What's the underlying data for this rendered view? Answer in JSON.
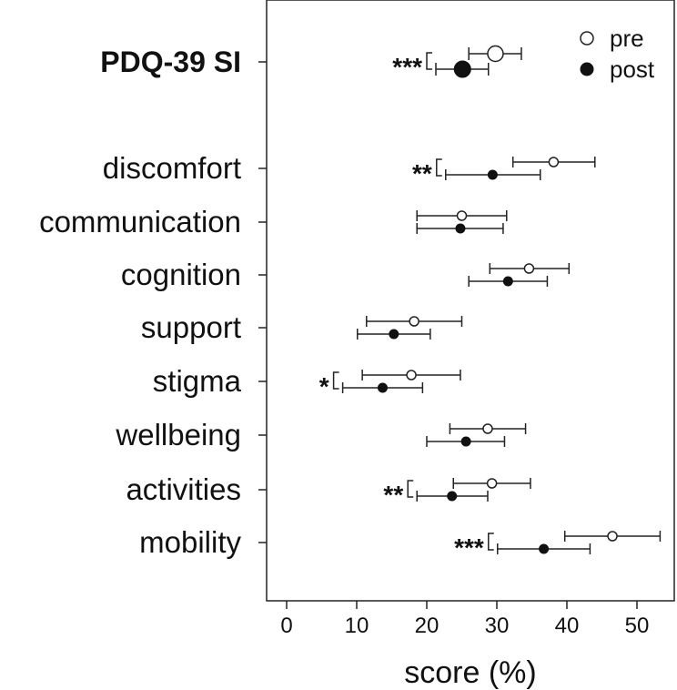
{
  "chart_data": {
    "type": "dot-errorbar",
    "xlabel": "score (%)",
    "xlim": [
      -2.5,
      55
    ],
    "xticks": [
      0,
      10,
      20,
      30,
      40,
      50
    ],
    "legend": {
      "position": "top-right",
      "entries": [
        "pre",
        "post"
      ]
    },
    "categories": [
      {
        "label": "PDQ-39 SI",
        "bold": true,
        "sig": "***",
        "pre": {
          "mean": 29.8,
          "low": 26.0,
          "high": 33.5
        },
        "post": {
          "mean": 25.1,
          "low": 21.3,
          "high": 28.8
        }
      },
      {
        "label": "discomfort",
        "sig": "**",
        "pre": {
          "mean": 38.1,
          "low": 32.3,
          "high": 44.0
        },
        "post": {
          "mean": 29.4,
          "low": 22.7,
          "high": 36.2
        }
      },
      {
        "label": "communication",
        "sig": "",
        "pre": {
          "mean": 25.0,
          "low": 18.6,
          "high": 31.4
        },
        "post": {
          "mean": 24.8,
          "low": 18.6,
          "high": 30.9
        }
      },
      {
        "label": "cognition",
        "sig": "",
        "pre": {
          "mean": 34.6,
          "low": 29.0,
          "high": 40.3
        },
        "post": {
          "mean": 31.6,
          "low": 26.0,
          "high": 37.2
        }
      },
      {
        "label": "support",
        "sig": "",
        "pre": {
          "mean": 18.2,
          "low": 11.4,
          "high": 25.0
        },
        "post": {
          "mean": 15.3,
          "low": 10.1,
          "high": 20.5
        }
      },
      {
        "label": "stigma",
        "sig": "*",
        "pre": {
          "mean": 17.8,
          "low": 10.8,
          "high": 24.8
        },
        "post": {
          "mean": 13.7,
          "low": 8.0,
          "high": 19.4
        }
      },
      {
        "label": "wellbeing",
        "sig": "",
        "pre": {
          "mean": 28.7,
          "low": 23.3,
          "high": 34.1
        },
        "post": {
          "mean": 25.6,
          "low": 20.0,
          "high": 31.1
        }
      },
      {
        "label": "activities",
        "sig": "**",
        "pre": {
          "mean": 29.3,
          "low": 23.8,
          "high": 34.8
        },
        "post": {
          "mean": 23.6,
          "low": 18.6,
          "high": 28.7
        }
      },
      {
        "label": "mobility",
        "sig": "***",
        "pre": {
          "mean": 46.5,
          "low": 39.7,
          "high": 53.3
        },
        "post": {
          "mean": 36.7,
          "low": 30.1,
          "high": 43.3
        }
      }
    ]
  }
}
